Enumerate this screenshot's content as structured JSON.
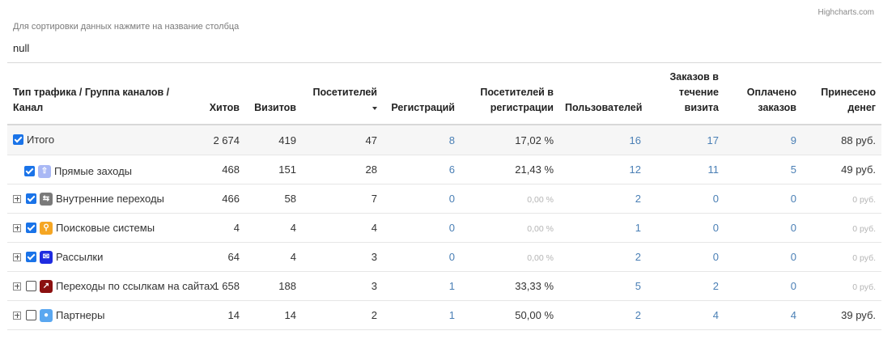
{
  "credit": "Highcharts.com",
  "hint": "Для сортировки данных нажмите на название столбца",
  "subtitle": "null",
  "columns": [
    {
      "label": "Тип трафика / Группа каналов / Канал",
      "sorted": false
    },
    {
      "label": "Хитов",
      "sorted": false
    },
    {
      "label": "Визитов",
      "sorted": false
    },
    {
      "label": "Посетителей",
      "sorted": true,
      "sort_direction": "desc"
    },
    {
      "label": "Регистраций",
      "sorted": false
    },
    {
      "label": "Посетителей в регистрации",
      "sorted": false
    },
    {
      "label": "Пользователей",
      "sorted": false
    },
    {
      "label": "Заказов в течение визита",
      "sorted": false
    },
    {
      "label": "Оплачено заказов",
      "sorted": false
    },
    {
      "label": "Принесено денег",
      "sorted": false
    }
  ],
  "rows": [
    {
      "name": "Итого",
      "expandable": false,
      "checked": true,
      "icon": null,
      "icon_color": null,
      "values": [
        "2 674",
        "419",
        "47",
        "8",
        "17,02 %",
        "16",
        "17",
        "9",
        "88 руб."
      ],
      "muted": [
        false,
        false,
        false,
        false,
        false,
        false,
        false,
        false,
        false
      ]
    },
    {
      "name": "Прямые заходы",
      "expandable": false,
      "checked": true,
      "icon": "arrow-up-icon",
      "icon_color": "#a9b8f5",
      "values": [
        "468",
        "151",
        "28",
        "6",
        "21,43 %",
        "12",
        "11",
        "5",
        "49 руб."
      ],
      "muted": [
        false,
        false,
        false,
        false,
        false,
        false,
        false,
        false,
        false
      ]
    },
    {
      "name": "Внутренние переходы",
      "expandable": true,
      "checked": true,
      "icon": "swap-arrows-icon",
      "icon_color": "#7a7a7a",
      "values": [
        "466",
        "58",
        "7",
        "0",
        "0,00 %",
        "2",
        "0",
        "0",
        "0 руб."
      ],
      "muted": [
        false,
        false,
        false,
        false,
        true,
        false,
        false,
        false,
        true
      ]
    },
    {
      "name": "Поисковые системы",
      "expandable": true,
      "checked": true,
      "icon": "search-icon",
      "icon_color": "#f5a623",
      "values": [
        "4",
        "4",
        "4",
        "0",
        "0,00 %",
        "1",
        "0",
        "0",
        "0 руб."
      ],
      "muted": [
        false,
        false,
        false,
        false,
        true,
        false,
        false,
        false,
        true
      ]
    },
    {
      "name": "Рассылки",
      "expandable": true,
      "checked": true,
      "icon": "envelope-icon",
      "icon_color": "#1f2be0",
      "values": [
        "64",
        "4",
        "3",
        "0",
        "0,00 %",
        "2",
        "0",
        "0",
        "0 руб."
      ],
      "muted": [
        false,
        false,
        false,
        false,
        true,
        false,
        false,
        false,
        true
      ]
    },
    {
      "name": "Переходы по ссылкам на сайтах",
      "expandable": true,
      "checked": false,
      "icon": "external-link-icon",
      "icon_color": "#8b1010",
      "values": [
        "1 658",
        "188",
        "3",
        "1",
        "33,33 %",
        "5",
        "2",
        "0",
        "0 руб."
      ],
      "muted": [
        false,
        false,
        false,
        false,
        false,
        false,
        false,
        false,
        true
      ]
    },
    {
      "name": "Партнеры",
      "expandable": true,
      "checked": false,
      "icon": "chat-bubble-icon",
      "icon_color": "#5aa7f0",
      "values": [
        "14",
        "14",
        "2",
        "1",
        "50,00 %",
        "2",
        "4",
        "4",
        "39 руб."
      ],
      "muted": [
        false,
        false,
        false,
        false,
        false,
        false,
        false,
        false,
        false
      ]
    }
  ],
  "link_columns": [
    3,
    5,
    6,
    7
  ],
  "colors": {
    "link": "#4a7fb5",
    "muted": "#b5b5b5",
    "checkbox": "#1a73e8",
    "total_bg": "#f6f6f6"
  }
}
